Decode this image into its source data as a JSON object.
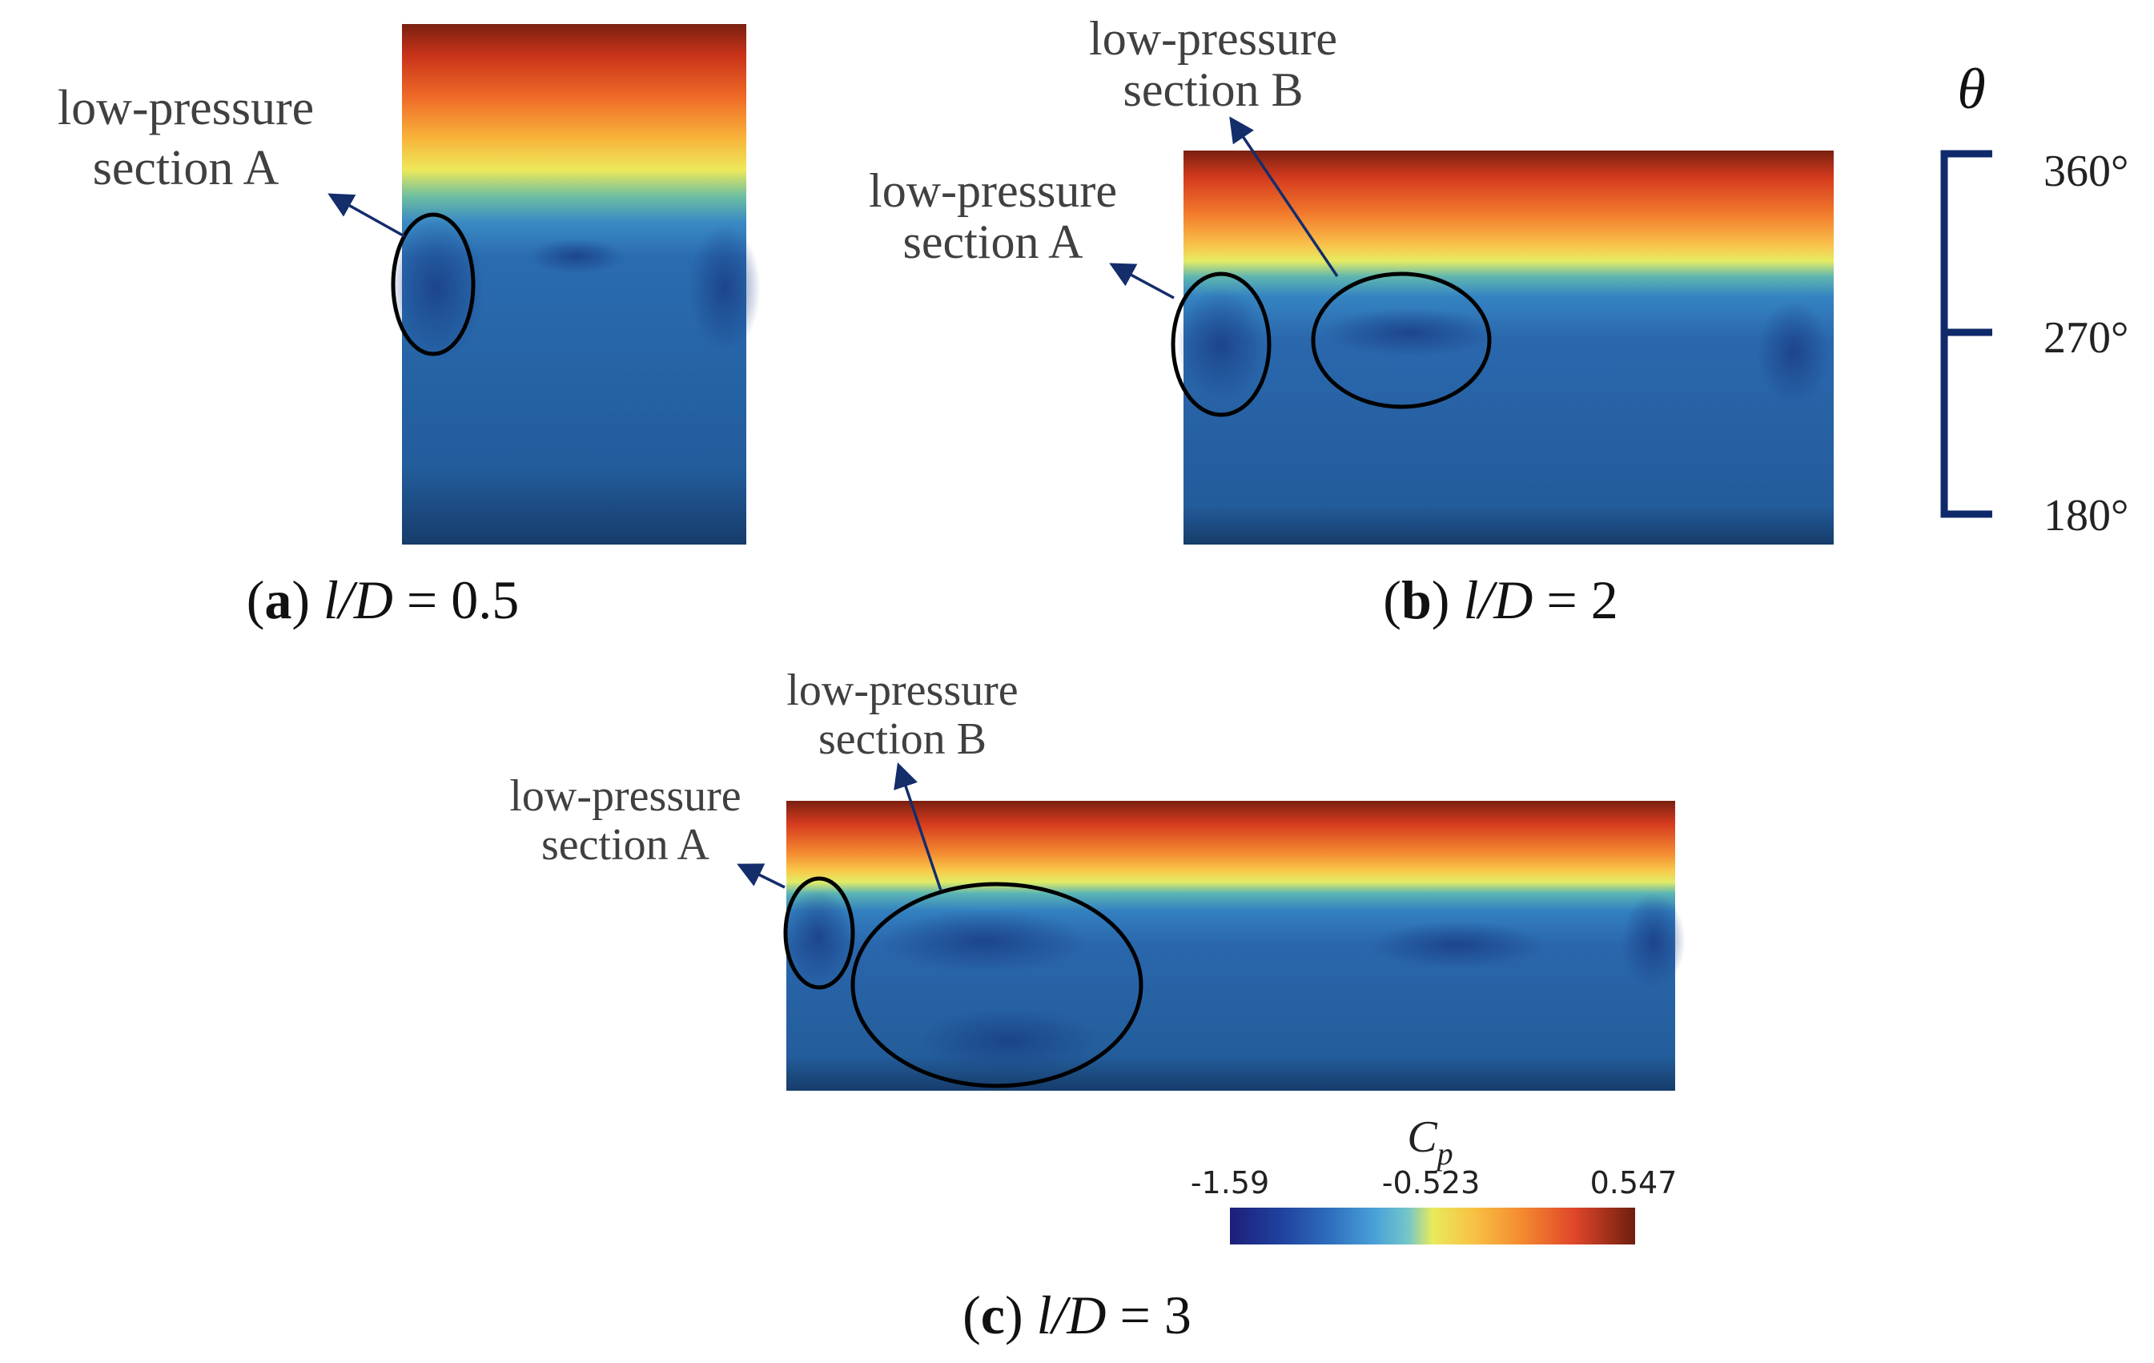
{
  "panels": [
    {
      "id": "a",
      "caption_letter": "a",
      "caption_ratio_var": "l/D",
      "caption_value": "0.5",
      "annotations": [
        {
          "line1": "low-pressure",
          "line2": "section A"
        }
      ]
    },
    {
      "id": "b",
      "caption_letter": "b",
      "caption_ratio_var": "l/D",
      "caption_value": "2",
      "annotations": [
        {
          "line1": "low-pressure",
          "line2": "section A"
        },
        {
          "line1": "low-pressure",
          "line2": "section B"
        }
      ]
    },
    {
      "id": "c",
      "caption_letter": "c",
      "caption_ratio_var": "l/D",
      "caption_value": "3",
      "annotations": [
        {
          "line1": "low-pressure",
          "line2": "section A"
        },
        {
          "line1": "low-pressure",
          "line2": "section B"
        }
      ]
    }
  ],
  "theta_scale": {
    "symbol": "θ",
    "ticks": [
      "360°",
      "270°",
      "180°"
    ],
    "color": "#0f2a6b"
  },
  "colorbar": {
    "symbol": "C",
    "subscript": "p",
    "min_label": "-1.59",
    "mid_label": "-0.523",
    "max_label": "0.547"
  },
  "colors": {
    "arrow": "#142d6b",
    "ellipse": "#000000",
    "text": "#404040"
  }
}
